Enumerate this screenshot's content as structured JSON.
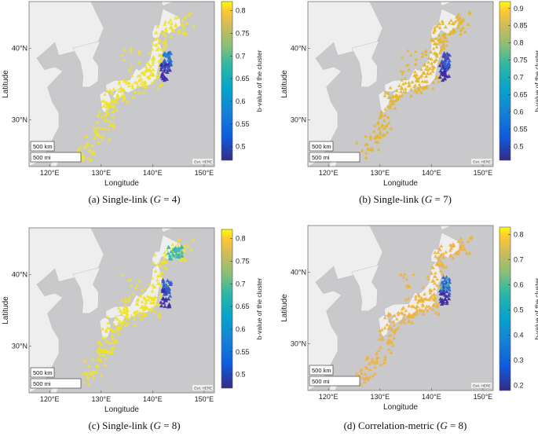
{
  "panels": [
    {
      "id": "a",
      "caption_prefix": "(a) Single-link (",
      "caption_var": "G",
      "caption_suffix": " = 4)",
      "ylabel": "Latitude",
      "xlabel": "Longitude",
      "colorbar_label": "b-value of the cluster",
      "lat_ticks": [
        "40°N",
        "30°N"
      ],
      "lon_ticks": [
        "120°E",
        "130°E",
        "140°E",
        "150°E"
      ],
      "colorbar_ticks": [
        "0.8",
        "0.75",
        "0.7",
        "0.65",
        "0.6",
        "0.55",
        "0.5"
      ],
      "colorbar_range": [
        0.47,
        0.82
      ],
      "scale_km": "500 km",
      "scale_mi": "500 mi",
      "attribution": "Esri, HERE",
      "dominant_color": "#f0e22a",
      "cluster_colors": [
        "#3b2aa8",
        "#2f5fd0",
        "#1f88d8"
      ]
    },
    {
      "id": "b",
      "caption_prefix": "(b) Single-link (",
      "caption_var": "G",
      "caption_suffix": " = 7)",
      "ylabel": "Latitude",
      "xlabel": "Longitude",
      "colorbar_label": "b-value of the cluster",
      "lat_ticks": [
        "40°N",
        "30°N"
      ],
      "lon_ticks": [
        "120°E",
        "130°E",
        "140°E",
        "150°E"
      ],
      "colorbar_ticks": [
        "0.9",
        "0.85",
        "0.8",
        "0.75",
        "0.7",
        "0.65",
        "0.6",
        "0.55",
        "0.5"
      ],
      "colorbar_range": [
        0.46,
        0.92
      ],
      "scale_km": "500 km",
      "scale_mi": "500 mi",
      "attribution": "Esri, HERE",
      "dominant_color": "#e6b62a",
      "cluster_colors": [
        "#3b2aa8",
        "#2f5fd0",
        "#4a3fc0"
      ]
    },
    {
      "id": "c",
      "caption_prefix": "(c) Single-link (",
      "caption_var": "G",
      "caption_suffix": " = 8)",
      "ylabel": "Latitude",
      "xlabel": "Longitude",
      "colorbar_label": "b-value of the cluster",
      "lat_ticks": [
        "40°N",
        "30°N"
      ],
      "lon_ticks": [
        "120°E",
        "130°E",
        "140°E",
        "150°E"
      ],
      "colorbar_ticks": [
        "0.8",
        "0.75",
        "0.7",
        "0.65",
        "0.6",
        "0.55",
        "0.5"
      ],
      "colorbar_range": [
        0.47,
        0.82
      ],
      "scale_km": "500 km",
      "scale_mi": "500 mi",
      "attribution": "Esri, HERE",
      "dominant_color": "#f0e22a",
      "cluster_colors": [
        "#3b2aa8",
        "#2f5fd0",
        "#36b8b0"
      ]
    },
    {
      "id": "d",
      "caption_prefix": "(d) Correlation-metric (",
      "caption_var": "G",
      "caption_suffix": " = 8)",
      "ylabel": "Latitude",
      "xlabel": "Longitude",
      "colorbar_label": "b-value of the cluster",
      "lat_ticks": [
        "40°N",
        "30°N"
      ],
      "lon_ticks": [
        "120°E",
        "130°E",
        "140°E",
        "150°E"
      ],
      "colorbar_ticks": [
        "0.8",
        "0.7",
        "0.6",
        "0.5",
        "0.4",
        "0.3",
        "0.2"
      ],
      "colorbar_range": [
        0.18,
        0.83
      ],
      "scale_km": "500 km",
      "scale_mi": "500 mi",
      "attribution": "Esri, HERE",
      "dominant_color": "#f0b23c",
      "cluster_colors": [
        "#3b2aa8",
        "#2f5fd0",
        "#36b8b0"
      ]
    }
  ]
}
